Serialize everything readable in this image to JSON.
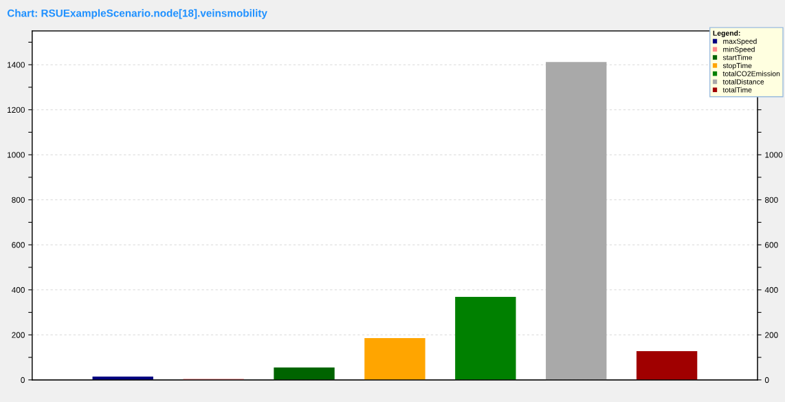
{
  "chart_data": {
    "type": "bar",
    "title": "Chart: RSUExampleScenario.node[18].veinsmobility",
    "categories": [
      null,
      null,
      null,
      null,
      null,
      null,
      null
    ],
    "series": [
      {
        "name": "maxSpeed",
        "color": "#000080",
        "values": [
          15,
          null,
          null,
          null,
          null,
          null,
          null
        ]
      },
      {
        "name": "minSpeed",
        "color": "#ff8a8a",
        "values": [
          null,
          5,
          null,
          null,
          null,
          null,
          null
        ]
      },
      {
        "name": "startTime",
        "color": "#006400",
        "values": [
          null,
          null,
          55,
          null,
          null,
          null,
          null
        ]
      },
      {
        "name": "stopTime",
        "color": "#ffa500",
        "values": [
          null,
          null,
          null,
          186,
          null,
          null,
          null
        ]
      },
      {
        "name": "totalCO2Emission",
        "color": "#008000",
        "values": [
          null,
          null,
          null,
          null,
          369,
          null,
          null
        ]
      },
      {
        "name": "totalDistance",
        "color": "#a9a9a9",
        "values": [
          null,
          null,
          null,
          null,
          null,
          1412,
          null
        ]
      },
      {
        "name": "totalTime",
        "color": "#a00000",
        "values": [
          null,
          null,
          null,
          null,
          null,
          null,
          128
        ]
      }
    ],
    "ylim": [
      0,
      1550
    ],
    "yticks": [
      0,
      {
        "value": 100,
        "label": null
      },
      200,
      {
        "value": 300,
        "label": null
      },
      400,
      {
        "value": 500,
        "label": null
      },
      600,
      {
        "value": 700,
        "label": null
      },
      800,
      {
        "value": 900,
        "label": null
      },
      1000,
      {
        "value": 1100,
        "label": null
      },
      1200,
      {
        "value": 1300,
        "label": null
      },
      1400,
      {
        "value": 1500,
        "label": null
      }
    ],
    "y2lim": [
      0,
      1550
    ],
    "y2ticks": [
      0,
      {
        "value": 100,
        "label": null
      },
      200,
      {
        "value": 300,
        "label": null
      },
      400,
      {
        "value": 500,
        "label": null
      },
      600,
      {
        "value": 700,
        "label": null
      },
      800,
      {
        "value": 900,
        "label": null
      },
      1000,
      {
        "value": 1100,
        "label": null
      },
      {
        "value": 1200,
        "label": null
      },
      {
        "value": 1300,
        "label": null
      },
      {
        "value": 1400,
        "label": null
      },
      {
        "value": 1500,
        "label": null
      }
    ],
    "grid": "y",
    "legend": "top right",
    "legend_title": "Legend:"
  }
}
